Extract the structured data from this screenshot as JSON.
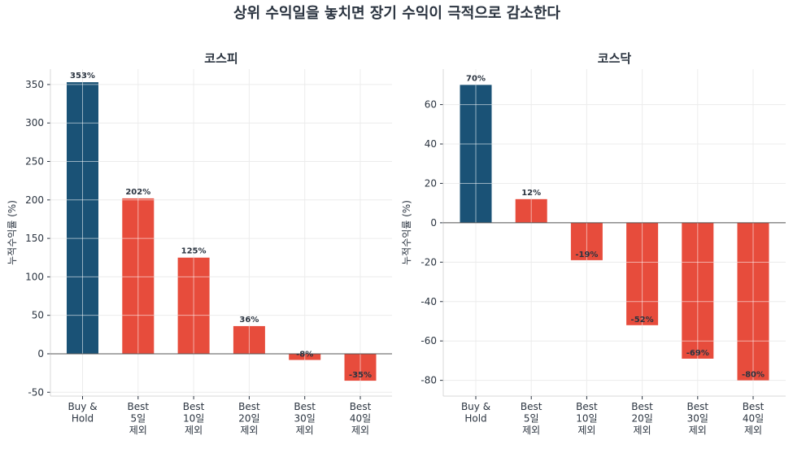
{
  "suptitle": "상위 수익일을 놓치면 장기 수익이 극적으로 감소한다",
  "colors": {
    "buyhold": "#1a5276",
    "best": "#e74c3c",
    "text": "#2b3440"
  },
  "chart_data": [
    {
      "type": "bar",
      "title": "코스피",
      "ylabel": "누적수익률 (%)",
      "categories": [
        [
          "Buy &",
          "Hold"
        ],
        [
          "Best",
          "5일",
          "제외"
        ],
        [
          "Best",
          "10일",
          "제외"
        ],
        [
          "Best",
          "20일",
          "제외"
        ],
        [
          "Best",
          "30일",
          "제외"
        ],
        [
          "Best",
          "40일",
          "제외"
        ]
      ],
      "values": [
        353,
        202,
        125,
        36,
        -8,
        -35
      ],
      "data_labels": [
        "353%",
        "202%",
        "125%",
        "36%",
        "-8%",
        "-35%"
      ],
      "yticks": [
        -50,
        0,
        50,
        100,
        150,
        200,
        250,
        300,
        350
      ],
      "ylim": [
        -55,
        370
      ],
      "grid": true
    },
    {
      "type": "bar",
      "title": "코스닥",
      "ylabel": "누적수익률 (%)",
      "categories": [
        [
          "Buy &",
          "Hold"
        ],
        [
          "Best",
          "5일",
          "제외"
        ],
        [
          "Best",
          "10일",
          "제외"
        ],
        [
          "Best",
          "20일",
          "제외"
        ],
        [
          "Best",
          "30일",
          "제외"
        ],
        [
          "Best",
          "40일",
          "제외"
        ]
      ],
      "values": [
        70,
        12,
        -19,
        -52,
        -69,
        -80
      ],
      "data_labels": [
        "70%",
        "12%",
        "-19%",
        "-52%",
        "-69%",
        "-80%"
      ],
      "yticks": [
        -80,
        -60,
        -40,
        -20,
        0,
        20,
        40,
        60
      ],
      "ylim": [
        -88,
        78
      ],
      "grid": true
    }
  ]
}
